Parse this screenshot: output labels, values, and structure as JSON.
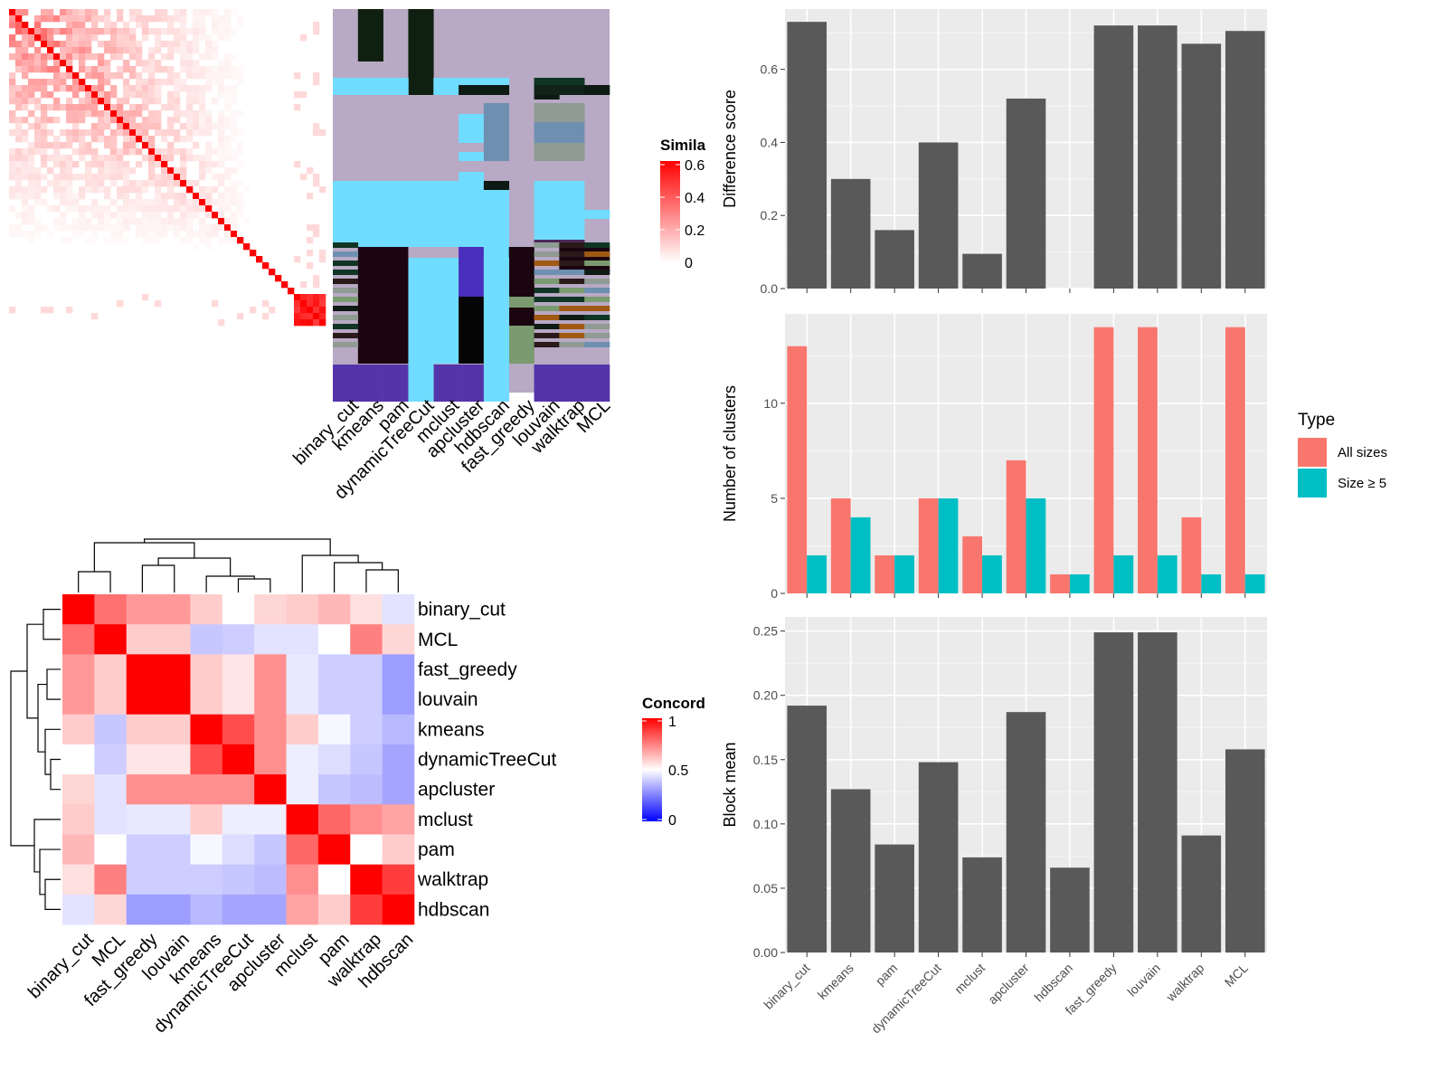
{
  "methods_a": [
    "binary_cut",
    "kmeans",
    "pam",
    "dynamicTreeCut",
    "mclust",
    "apcluster",
    "hdbscan",
    "fast_greedy",
    "louvain",
    "walktrap",
    "MCL"
  ],
  "similarity_legend": {
    "title": "Simila",
    "ticks": [
      "0.6",
      "0.4",
      "0.2",
      "0"
    ]
  },
  "concordance_legend": {
    "title": "Concord",
    "ticks": [
      "1",
      "0.5",
      "0"
    ]
  },
  "concordance_order": [
    "binary_cut",
    "MCL",
    "fast_greedy",
    "louvain",
    "kmeans",
    "dynamicTreeCut",
    "apcluster",
    "mclust",
    "pam",
    "walktrap",
    "hdbscan"
  ],
  "concordance_matrix": [
    [
      1.0,
      0.78,
      0.7,
      0.7,
      0.6,
      0.5,
      0.58,
      0.6,
      0.64,
      0.56,
      0.4
    ],
    [
      0.78,
      1.0,
      0.6,
      0.6,
      0.3,
      0.32,
      0.4,
      0.4,
      0.5,
      0.75,
      0.58
    ],
    [
      0.7,
      0.6,
      1.0,
      1.0,
      0.6,
      0.55,
      0.72,
      0.42,
      0.32,
      0.32,
      0.15
    ],
    [
      0.7,
      0.6,
      1.0,
      1.0,
      0.6,
      0.55,
      0.72,
      0.42,
      0.32,
      0.32,
      0.15
    ],
    [
      0.6,
      0.3,
      0.6,
      0.6,
      1.0,
      0.85,
      0.72,
      0.6,
      0.47,
      0.32,
      0.25
    ],
    [
      0.5,
      0.32,
      0.55,
      0.55,
      0.85,
      1.0,
      0.72,
      0.44,
      0.38,
      0.3,
      0.18
    ],
    [
      0.58,
      0.4,
      0.72,
      0.72,
      0.72,
      0.72,
      1.0,
      0.44,
      0.3,
      0.26,
      0.18
    ],
    [
      0.6,
      0.4,
      0.42,
      0.42,
      0.6,
      0.44,
      0.44,
      1.0,
      0.8,
      0.72,
      0.68
    ],
    [
      0.64,
      0.5,
      0.32,
      0.32,
      0.47,
      0.38,
      0.3,
      0.8,
      1.0,
      0.5,
      0.6
    ],
    [
      0.56,
      0.75,
      0.32,
      0.32,
      0.32,
      0.3,
      0.26,
      0.72,
      0.5,
      1.0,
      0.88
    ],
    [
      0.4,
      0.58,
      0.15,
      0.15,
      0.25,
      0.18,
      0.18,
      0.68,
      0.6,
      0.88,
      1.0
    ]
  ],
  "chart_data": [
    {
      "type": "bar",
      "categories": [
        "binary_cut",
        "kmeans",
        "pam",
        "dynamicTreeCut",
        "mclust",
        "apcluster",
        "hdbscan",
        "fast_greedy",
        "louvain",
        "walktrap",
        "MCL"
      ],
      "values": [
        0.73,
        0.3,
        0.16,
        0.4,
        0.095,
        0.52,
        0.0,
        0.72,
        0.72,
        0.67,
        0.705
      ],
      "xlabel": "",
      "ylabel": "Difference score",
      "ylim": [
        0,
        0.765
      ],
      "yticks": [
        0.0,
        0.2,
        0.4,
        0.6
      ],
      "yticklabels": [
        "0.0",
        "0.2",
        "0.4",
        "0.6"
      ],
      "grid": true,
      "show_xticklabels": false
    },
    {
      "type": "bar",
      "categories": [
        "binary_cut",
        "kmeans",
        "pam",
        "dynamicTreeCut",
        "mclust",
        "apcluster",
        "hdbscan",
        "fast_greedy",
        "louvain",
        "walktrap",
        "MCL"
      ],
      "series": [
        {
          "name": "All sizes",
          "color": "#f8766d",
          "values": [
            13,
            5,
            2,
            5,
            3,
            7,
            1,
            14,
            14,
            4,
            14
          ]
        },
        {
          "name": "Size ≥ 5",
          "color": "#00bfc4",
          "values": [
            2,
            4,
            2,
            5,
            2,
            5,
            1,
            2,
            2,
            1,
            1
          ]
        }
      ],
      "xlabel": "",
      "ylabel": "Number of clusters",
      "ylim": [
        0,
        14.7
      ],
      "yticks": [
        0,
        5,
        10
      ],
      "yticklabels": [
        "0",
        "5",
        "10"
      ],
      "grid": true,
      "show_xticklabels": false,
      "legend": {
        "title": "Type",
        "position": "right"
      }
    },
    {
      "type": "bar",
      "categories": [
        "binary_cut",
        "kmeans",
        "pam",
        "dynamicTreeCut",
        "mclust",
        "apcluster",
        "hdbscan",
        "fast_greedy",
        "louvain",
        "walktrap",
        "MCL"
      ],
      "values": [
        0.192,
        0.127,
        0.084,
        0.148,
        0.074,
        0.187,
        0.066,
        0.249,
        0.249,
        0.091,
        0.158
      ],
      "xlabel": "",
      "ylabel": "Block mean",
      "ylim": [
        0,
        0.261
      ],
      "yticks": [
        0.0,
        0.05,
        0.1,
        0.15,
        0.2,
        0.25
      ],
      "yticklabels": [
        "0.00",
        "0.05",
        "0.10",
        "0.15",
        "0.20",
        "0.25"
      ],
      "grid": true,
      "show_xticklabels": true
    }
  ],
  "colors": {
    "bar": "#595959",
    "panel": "#ebebeb",
    "grid": "#ffffff",
    "sim_high": "#ff0000",
    "conc_high": "#ff0000",
    "conc_mid": "#ffffff",
    "conc_low": "#0000ff"
  }
}
